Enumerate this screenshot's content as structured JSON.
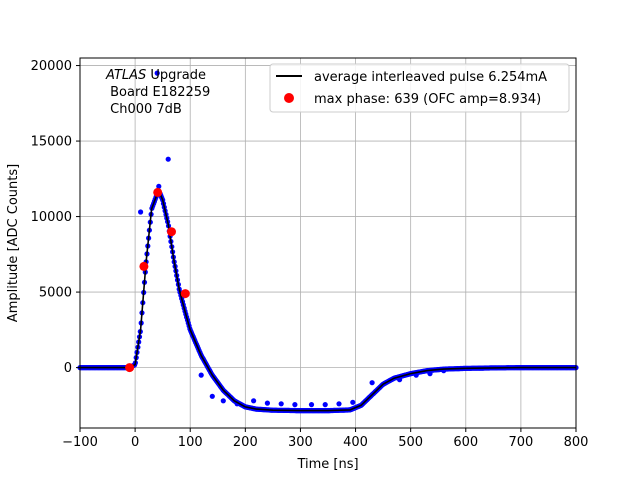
{
  "chart_data": {
    "type": "scatter",
    "xlabel": "Time [ns]",
    "ylabel": "Amplitude [ADC Counts]",
    "xlim": [
      -100,
      800
    ],
    "ylim": [
      -4000,
      20500
    ],
    "xticks": [
      -100,
      0,
      100,
      200,
      300,
      400,
      500,
      600,
      700,
      800
    ],
    "xtick_labels": [
      "−100",
      "0",
      "100",
      "200",
      "300",
      "400",
      "500",
      "600",
      "700",
      "800"
    ],
    "yticks": [
      0,
      5000,
      10000,
      15000,
      20000
    ],
    "ytick_labels": [
      "0",
      "5000",
      "10000",
      "15000",
      "20000"
    ],
    "grid": true,
    "legend_position": "top-right",
    "annotation": {
      "italic": "ATLAS",
      "line1_rest": " Upgrade",
      "line2": " Board E182259",
      "line3": " Ch000 7dB"
    },
    "series": [
      {
        "name": "average interleaved pulse 6.254mA",
        "kind": "line",
        "color": "#000000",
        "x": [
          -100,
          -10,
          0,
          10,
          20,
          30,
          40,
          45,
          50,
          60,
          70,
          80,
          90,
          100,
          120,
          140,
          160,
          180,
          200,
          220,
          250,
          300,
          350,
          390,
          410,
          430,
          450,
          470,
          500,
          530,
          560,
          600,
          650,
          700,
          800
        ],
        "y": [
          0,
          0,
          200,
          2500,
          7000,
          10500,
          11500,
          11550,
          11100,
          9500,
          7200,
          5200,
          3800,
          2500,
          800,
          -500,
          -1500,
          -2200,
          -2600,
          -2750,
          -2820,
          -2850,
          -2850,
          -2800,
          -2500,
          -1800,
          -1100,
          -700,
          -400,
          -200,
          -100,
          -50,
          -20,
          0,
          0
        ]
      },
      {
        "name": "",
        "kind": "samples",
        "color": "#0000ff",
        "outliers": [
          [
            40,
            19500
          ],
          [
            60,
            13800
          ],
          [
            10,
            10300
          ],
          [
            43,
            12000
          ],
          [
            120,
            -500
          ],
          [
            140,
            -1900
          ],
          [
            160,
            -2200
          ],
          [
            185,
            -2400
          ],
          [
            215,
            -2200
          ],
          [
            240,
            -2350
          ],
          [
            265,
            -2400
          ],
          [
            290,
            -2450
          ],
          [
            320,
            -2450
          ],
          [
            345,
            -2450
          ],
          [
            370,
            -2400
          ],
          [
            395,
            -2300
          ],
          [
            430,
            -1000
          ],
          [
            455,
            -1000
          ],
          [
            480,
            -800
          ],
          [
            510,
            -500
          ],
          [
            535,
            -400
          ],
          [
            560,
            -200
          ]
        ]
      },
      {
        "name": "max phase: 639 (OFC amp=8.934)",
        "kind": "markers",
        "color": "#ff0000",
        "x": [
          -10,
          16,
          41,
          66,
          91
        ],
        "y": [
          0,
          6700,
          11600,
          9000,
          4900
        ]
      }
    ]
  }
}
